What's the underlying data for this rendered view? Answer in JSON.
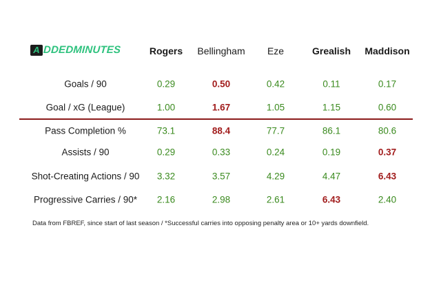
{
  "logo": {
    "mark": "A",
    "text": "DDEDMINUTES"
  },
  "headers": [
    "Rogers",
    "Bellingham",
    "Eze",
    "Grealish",
    "Maddison"
  ],
  "rows": [
    {
      "label": "Goals / 90",
      "values": [
        "0.29",
        "0.50",
        "0.42",
        "0.11",
        "0.17"
      ],
      "highlight": [
        false,
        true,
        false,
        false,
        false
      ]
    },
    {
      "label": "Goal / xG (League)",
      "values": [
        "1.00",
        "1.67",
        "1.05",
        "1.15",
        "0.60"
      ],
      "highlight": [
        false,
        true,
        false,
        false,
        false
      ]
    },
    {
      "label": "Pass Completion %",
      "values": [
        "73.1",
        "88.4",
        "77.7",
        "86.1",
        "80.6"
      ],
      "highlight": [
        false,
        true,
        false,
        false,
        false
      ]
    },
    {
      "label": "Assists / 90",
      "values": [
        "0.29",
        "0.33",
        "0.24",
        "0.19",
        "0.37"
      ],
      "highlight": [
        false,
        false,
        false,
        false,
        true
      ]
    },
    {
      "label": "Shot-Creating Actions / 90",
      "values": [
        "3.32",
        "3.57",
        "4.29",
        "4.47",
        "6.43"
      ],
      "highlight": [
        false,
        false,
        false,
        false,
        true
      ]
    },
    {
      "label": "Progressive Carries / 90*",
      "values": [
        "2.16",
        "2.98",
        "2.61",
        "6.43",
        "2.40"
      ],
      "highlight": [
        false,
        false,
        false,
        true,
        false
      ]
    }
  ],
  "footnote": "Data from FBREF, since start of last season / *Successful carries into opposing penalty area or 10+ yards downfield.",
  "colors": {
    "normal": "#3a8a1e",
    "best": "#a11c1c",
    "divider": "#8b1a1a",
    "logo": "#2ec27e"
  }
}
